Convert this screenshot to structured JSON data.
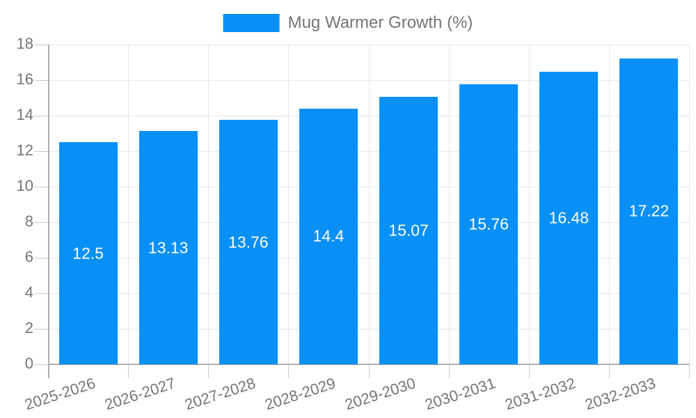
{
  "legend": {
    "label": "Mug Warmer Growth (%)"
  },
  "chart_data": {
    "type": "bar",
    "title": "",
    "categories": [
      "2025-2026",
      "2026-2027",
      "2027-2028",
      "2028-2029",
      "2029-2030",
      "2030-2031",
      "2031-2032",
      "2032-2033"
    ],
    "series": [
      {
        "name": "Mug Warmer Growth (%)",
        "values": [
          12.5,
          13.13,
          13.76,
          14.4,
          15.07,
          15.76,
          16.48,
          17.22
        ]
      }
    ],
    "bar_value_labels": [
      "12.5",
      "13.13",
      "13.76",
      "14.4",
      "15.07",
      "15.76",
      "16.48",
      "17.22"
    ],
    "xlabel": "",
    "ylabel": "",
    "ylim": [
      0,
      18
    ],
    "ytick_step": 2,
    "ytick_labels": [
      "0",
      "2",
      "4",
      "6",
      "8",
      "10",
      "12",
      "14",
      "16",
      "18"
    ],
    "grid": "both",
    "legend_position": "top-center",
    "bar_label_position": "inside-center",
    "colors": {
      "bar": "#0890f7",
      "grid": "#e6e6e6",
      "tick": "#c9c9c9",
      "axis": "#aeaeae",
      "text": "#757575",
      "bar_label": "#ffffff"
    }
  }
}
